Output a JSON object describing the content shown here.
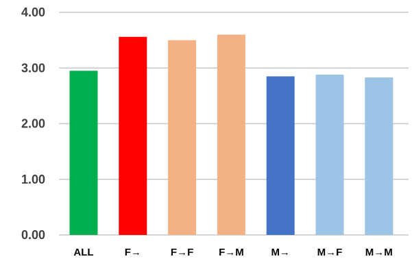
{
  "chart_data": {
    "type": "bar",
    "title": "",
    "xlabel": "",
    "ylabel": "",
    "categories": [
      "ALL",
      "F→",
      "F→F",
      "F→M",
      "M→",
      "M→F",
      "M→M"
    ],
    "values": [
      2.95,
      3.56,
      3.5,
      3.6,
      2.85,
      2.88,
      2.83
    ],
    "colors": [
      "#00b050",
      "#ff0000",
      "#f4b183",
      "#f4b183",
      "#4472c4",
      "#9dc3e6",
      "#9dc3e6"
    ],
    "ylim": [
      0,
      4
    ],
    "yticks": [
      0,
      1,
      2,
      3,
      4
    ],
    "ytick_labels": [
      "0.00",
      "1.00",
      "2.00",
      "3.00",
      "4.00"
    ],
    "grid": true,
    "legend": "none"
  }
}
